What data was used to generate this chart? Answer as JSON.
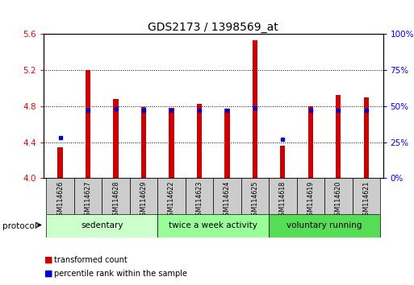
{
  "title": "GDS2173 / 1398569_at",
  "samples": [
    "GSM114626",
    "GSM114627",
    "GSM114628",
    "GSM114629",
    "GSM114622",
    "GSM114623",
    "GSM114624",
    "GSM114625",
    "GSM114618",
    "GSM114619",
    "GSM114620",
    "GSM114621"
  ],
  "transformed_count": [
    4.34,
    5.2,
    4.88,
    4.79,
    4.78,
    4.83,
    4.77,
    5.53,
    4.36,
    4.8,
    4.92,
    4.9
  ],
  "percentile_rank": [
    28,
    47,
    48,
    47,
    47,
    47,
    47,
    49,
    27,
    47,
    47,
    47
  ],
  "groups": [
    {
      "label": "sedentary",
      "start": 0,
      "end": 4,
      "color": "#ccffcc"
    },
    {
      "label": "twice a week activity",
      "start": 4,
      "end": 8,
      "color": "#99ff99"
    },
    {
      "label": "voluntary running",
      "start": 8,
      "end": 12,
      "color": "#55dd55"
    }
  ],
  "ylim_left": [
    4.0,
    5.6
  ],
  "ylim_right": [
    0,
    100
  ],
  "yticks_left": [
    4.0,
    4.4,
    4.8,
    5.2,
    5.6
  ],
  "yticks_right": [
    0,
    25,
    50,
    75,
    100
  ],
  "ytick_labels_right": [
    "0%",
    "25%",
    "50%",
    "75%",
    "100%"
  ],
  "bar_color": "#cc0000",
  "dot_color": "#0000cc",
  "bar_bottom": 4.0,
  "bar_width": 0.18,
  "xlabel_bg": "#cccccc",
  "title_fontsize": 10,
  "tick_fontsize": 7.5,
  "legend_label_count": "transformed count",
  "legend_label_percentile": "percentile rank within the sample",
  "protocol_label": "protocol"
}
